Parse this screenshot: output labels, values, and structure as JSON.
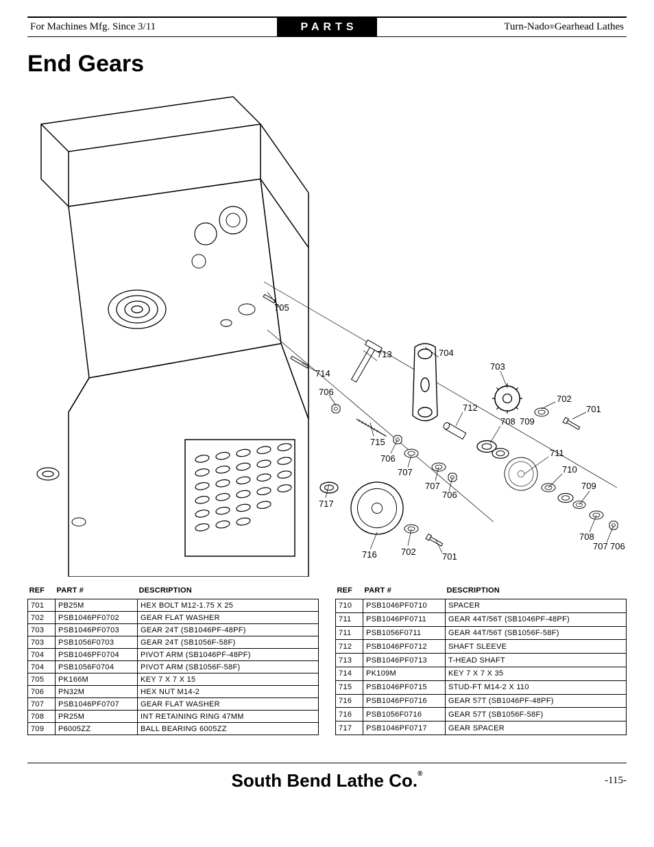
{
  "header": {
    "left": "For Machines Mfg. Since 3/11",
    "center": "PARTS",
    "right_prefix": "Turn-Nado",
    "right_reg": "®",
    "right_suffix": " Gearhead Lathes"
  },
  "title": "End Gears",
  "diagram": {
    "callouts": [
      "701",
      "702",
      "703",
      "704",
      "705",
      "706",
      "707",
      "708",
      "709",
      "710",
      "711",
      "712",
      "713",
      "714",
      "715",
      "716",
      "717"
    ]
  },
  "table_left": {
    "headers": [
      "REF",
      "PART #",
      "DESCRIPTION"
    ],
    "rows": [
      [
        "701",
        "PB25M",
        "HEX BOLT M12-1.75 X 25"
      ],
      [
        "702",
        "PSB1046PF0702",
        "GEAR FLAT WASHER"
      ],
      [
        "703",
        "PSB1046PF0703",
        "GEAR 24T (SB1046PF-48PF)"
      ],
      [
        "703",
        "PSB1056F0703",
        "GEAR 24T (SB1056F-58F)"
      ],
      [
        "704",
        "PSB1046PF0704",
        "PIVOT ARM (SB1046PF-48PF)"
      ],
      [
        "704",
        "PSB1056F0704",
        "PIVOT ARM (SB1056F-58F)"
      ],
      [
        "705",
        "PK166M",
        "KEY 7 X 7 X 15"
      ],
      [
        "706",
        "PN32M",
        "HEX NUT M14-2"
      ],
      [
        "707",
        "PSB1046PF0707",
        "GEAR FLAT WASHER"
      ],
      [
        "708",
        "PR25M",
        "INT RETAINING RING 47MM"
      ],
      [
        "709",
        "P6005ZZ",
        "BALL BEARING 6005ZZ"
      ]
    ]
  },
  "table_right": {
    "headers": [
      "REF",
      "PART #",
      "DESCRIPTION"
    ],
    "rows": [
      [
        "710",
        "PSB1046PF0710",
        "SPACER"
      ],
      [
        "711",
        "PSB1046PF0711",
        "GEAR 44T/56T (SB1046PF-48PF)"
      ],
      [
        "711",
        "PSB1056F0711",
        "GEAR 44T/56T (SB1056F-58F)"
      ],
      [
        "712",
        "PSB1046PF0712",
        "SHAFT SLEEVE"
      ],
      [
        "713",
        "PSB1046PF0713",
        "T-HEAD SHAFT"
      ],
      [
        "714",
        "PK109M",
        "KEY 7 X 7 X 35"
      ],
      [
        "715",
        "PSB1046PF0715",
        "STUD-FT M14-2 X 110"
      ],
      [
        "716",
        "PSB1046PF0716",
        "GEAR 57T (SB1046PF-48PF)"
      ],
      [
        "716",
        "PSB1056F0716",
        "GEAR 57T (SB1056F-58F)"
      ],
      [
        "717",
        "PSB1046PF0717",
        "GEAR SPACER"
      ]
    ]
  },
  "footer": {
    "brand": "South Bend Lathe Co.",
    "reg": "®",
    "page": "-115-"
  }
}
